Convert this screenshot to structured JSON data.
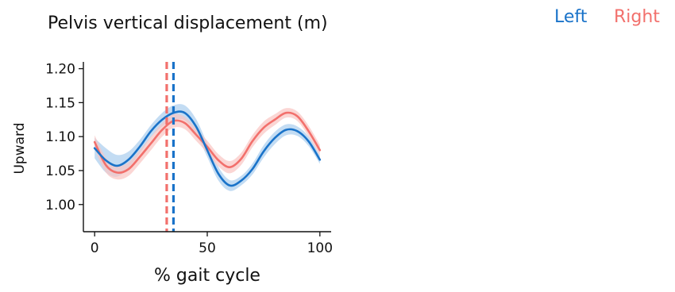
{
  "chart_data": {
    "type": "line",
    "title": "Pelvis vertical displacement (m)",
    "xlabel": "% gait cycle",
    "ylabel": "Upward",
    "xlim": [
      -5,
      105
    ],
    "ylim": [
      0.96,
      1.21
    ],
    "x_ticks": [
      0,
      50,
      100
    ],
    "x_tick_labels": [
      "0",
      "50",
      "100"
    ],
    "y_ticks": [
      1.0,
      1.05,
      1.1,
      1.15,
      1.2
    ],
    "y_tick_labels": [
      "1.00",
      "1.05",
      "1.10",
      "1.15",
      "1.20"
    ],
    "grid": false,
    "legend_position": "top-right",
    "x": [
      0,
      5,
      10,
      15,
      20,
      25,
      30,
      35,
      40,
      45,
      50,
      55,
      60,
      65,
      70,
      75,
      80,
      85,
      90,
      95,
      100
    ],
    "series": [
      {
        "name": "Left",
        "color": "#1a73c9",
        "band_color": "#a9cdee",
        "values": [
          1.083,
          1.065,
          1.057,
          1.066,
          1.085,
          1.108,
          1.125,
          1.135,
          1.135,
          1.115,
          1.08,
          1.045,
          1.028,
          1.035,
          1.052,
          1.078,
          1.098,
          1.11,
          1.108,
          1.093,
          1.066
        ],
        "band": [
          0.015,
          0.018,
          0.016,
          0.012,
          0.01,
          0.009,
          0.01,
          0.011,
          0.011,
          0.011,
          0.01,
          0.01,
          0.008,
          0.007,
          0.008,
          0.009,
          0.009,
          0.008,
          0.007,
          0.007,
          0.006
        ],
        "heel_strike_x": 35
      },
      {
        "name": "Right",
        "color": "#f2706c",
        "band_color": "#f9c4c2",
        "values": [
          1.092,
          1.058,
          1.047,
          1.052,
          1.07,
          1.09,
          1.11,
          1.123,
          1.12,
          1.103,
          1.085,
          1.065,
          1.055,
          1.067,
          1.093,
          1.113,
          1.125,
          1.135,
          1.13,
          1.108,
          1.08
        ],
        "band": [
          0.01,
          0.011,
          0.01,
          0.01,
          0.01,
          0.01,
          0.01,
          0.01,
          0.009,
          0.009,
          0.009,
          0.009,
          0.009,
          0.009,
          0.009,
          0.009,
          0.008,
          0.007,
          0.007,
          0.008,
          0.008
        ],
        "heel_strike_x": 32
      }
    ]
  }
}
